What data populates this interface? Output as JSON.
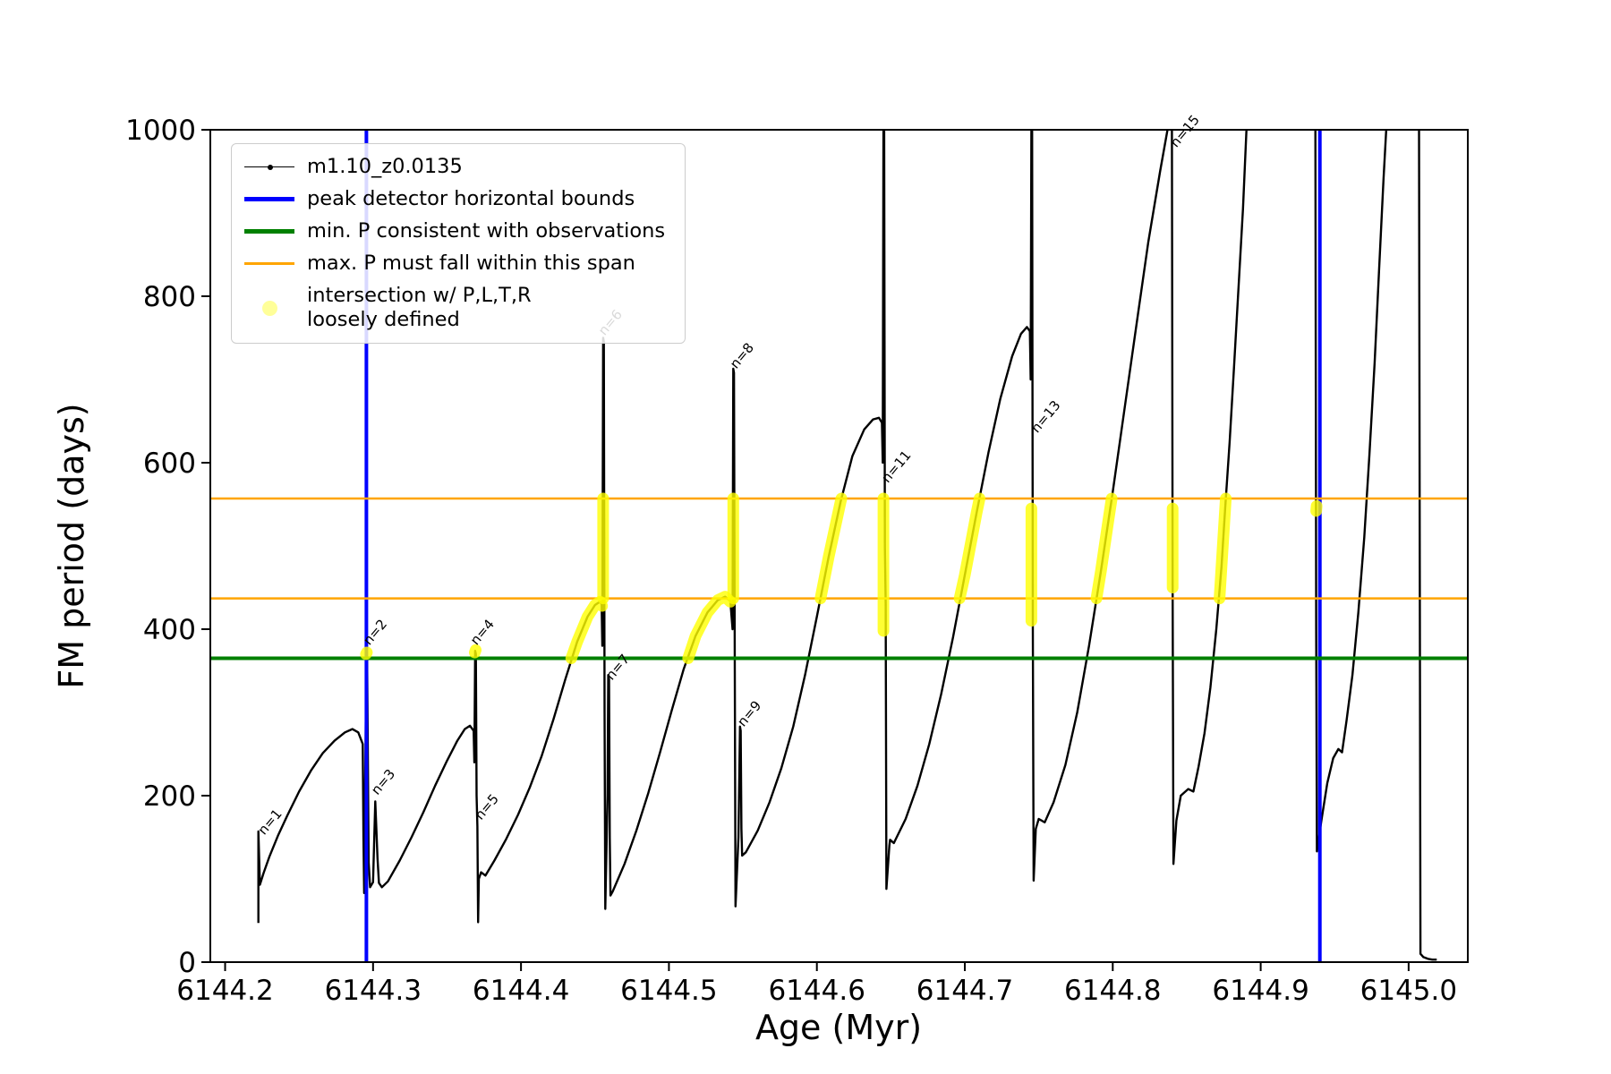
{
  "chart_data": {
    "type": "line",
    "title": "",
    "xlabel": "Age (Myr)",
    "ylabel": "FM period (days)",
    "xlim": [
      6144.19,
      6145.04
    ],
    "ylim": [
      0,
      1000
    ],
    "grid": false,
    "xticks": [
      6144.2,
      6144.3,
      6144.4,
      6144.5,
      6144.6,
      6144.7,
      6144.8,
      6144.9,
      6145.0
    ],
    "xtick_labels": [
      "6144.2",
      "6144.3",
      "6144.4",
      "6144.5",
      "6144.6",
      "6144.7",
      "6144.8",
      "6144.9",
      "6145.0"
    ],
    "yticks": [
      0,
      200,
      400,
      600,
      800,
      1000
    ],
    "ytick_labels": [
      "0",
      "200",
      "400",
      "600",
      "800",
      "1000"
    ],
    "colors": {
      "curve": "#000000",
      "peak_bounds": "#0000ff",
      "min_p": "#008000",
      "span": "#ffa500",
      "intersection": "#ffff00",
      "legend_dot": "#ffff99"
    },
    "legend_entries": [
      {
        "type": "line-dot",
        "color": "#000000",
        "lw": 1.5,
        "label": "m1.10_z0.0135"
      },
      {
        "type": "line",
        "color": "#0000ff",
        "lw": 5,
        "label": "peak detector horizontal bounds"
      },
      {
        "type": "line",
        "color": "#008000",
        "lw": 5,
        "label": "min. P consistent with observations"
      },
      {
        "type": "line",
        "color": "#ffa500",
        "lw": 2.5,
        "label": "max. P must fall within this span"
      },
      {
        "type": "dot",
        "color": "#ffff99",
        "lw": 0,
        "label": "intersection w/ P,L,T,R",
        "label2": "loosely defined"
      }
    ],
    "hlines": [
      {
        "y": 365,
        "color": "#008000",
        "width": 4,
        "name": "min-p-line"
      },
      {
        "y": 437,
        "color": "#ffa500",
        "width": 2.5,
        "name": "span-lower-line"
      },
      {
        "y": 557,
        "color": "#ffa500",
        "width": 2.5,
        "name": "span-upper-line"
      }
    ],
    "vlines": [
      {
        "x": 6144.2955,
        "color": "#0000ff",
        "width": 4,
        "name": "peak-bound-left"
      },
      {
        "x": 6144.94,
        "color": "#0000ff",
        "width": 4,
        "name": "peak-bound-right"
      }
    ],
    "series_name": "m1.10_z0.0135",
    "curve_segments": [
      [
        [
          6144.2225,
          47
        ],
        [
          6144.2225,
          157
        ],
        [
          6144.2235,
          93
        ],
        [
          6144.226,
          107
        ],
        [
          6144.23,
          127
        ],
        [
          6144.236,
          153
        ],
        [
          6144.242,
          176
        ],
        [
          6144.25,
          205
        ],
        [
          6144.258,
          230
        ],
        [
          6144.266,
          251
        ],
        [
          6144.274,
          266
        ],
        [
          6144.281,
          276
        ],
        [
          6144.286,
          280
        ],
        [
          6144.29,
          276
        ],
        [
          6144.293,
          262
        ],
        [
          6144.2935,
          150
        ],
        [
          6144.294,
          83
        ],
        [
          6144.2955,
          370
        ],
        [
          6144.296,
          365
        ],
        [
          6144.2965,
          250
        ],
        [
          6144.297,
          120
        ],
        [
          6144.298,
          90
        ],
        [
          6144.3,
          96
        ],
        [
          6144.3015,
          193
        ],
        [
          6144.303,
          125
        ],
        [
          6144.304,
          95
        ],
        [
          6144.306,
          90
        ],
        [
          6144.31,
          97
        ],
        [
          6144.318,
          122
        ],
        [
          6144.326,
          150
        ],
        [
          6144.334,
          180
        ],
        [
          6144.342,
          212
        ],
        [
          6144.35,
          242
        ],
        [
          6144.357,
          266
        ],
        [
          6144.362,
          280
        ],
        [
          6144.3655,
          284
        ],
        [
          6144.368,
          278
        ],
        [
          6144.3685,
          240
        ],
        [
          6144.369,
          374
        ],
        [
          6144.3695,
          370
        ],
        [
          6144.37,
          200
        ],
        [
          6144.3705,
          163
        ],
        [
          6144.371,
          48
        ],
        [
          6144.3715,
          100
        ],
        [
          6144.373,
          108
        ],
        [
          6144.376,
          104
        ],
        [
          6144.382,
          122
        ],
        [
          6144.39,
          148
        ],
        [
          6144.398,
          177
        ],
        [
          6144.406,
          210
        ],
        [
          6144.414,
          248
        ],
        [
          6144.422,
          292
        ],
        [
          6144.43,
          340
        ],
        [
          6144.438,
          385
        ],
        [
          6144.445,
          415
        ],
        [
          6144.45,
          429
        ],
        [
          6144.4535,
          433
        ],
        [
          6144.4545,
          430
        ],
        [
          6144.455,
          380
        ],
        [
          6144.4555,
          750
        ],
        [
          6144.456,
          745
        ],
        [
          6144.4565,
          300
        ],
        [
          6144.457,
          64
        ],
        [
          6144.4585,
          200
        ],
        [
          6144.459,
          345
        ],
        [
          6144.4595,
          340
        ],
        [
          6144.46,
          150
        ],
        [
          6144.4605,
          80
        ],
        [
          6144.462,
          85
        ],
        [
          6144.47,
          118
        ],
        [
          6144.478,
          158
        ],
        [
          6144.486,
          203
        ],
        [
          6144.494,
          252
        ],
        [
          6144.502,
          303
        ],
        [
          6144.51,
          352
        ],
        [
          6144.518,
          392
        ],
        [
          6144.526,
          420
        ],
        [
          6144.533,
          435
        ],
        [
          6144.538,
          439
        ],
        [
          6144.5415,
          434
        ],
        [
          6144.543,
          400
        ],
        [
          6144.5435,
          713
        ],
        [
          6144.544,
          708
        ],
        [
          6144.5445,
          350
        ],
        [
          6144.545,
          67
        ],
        [
          6144.547,
          150
        ],
        [
          6144.548,
          283
        ],
        [
          6144.5485,
          278
        ],
        [
          6144.549,
          160
        ],
        [
          6144.5495,
          128
        ],
        [
          6144.552,
          132
        ],
        [
          6144.56,
          158
        ],
        [
          6144.568,
          192
        ],
        [
          6144.576,
          233
        ],
        [
          6144.584,
          283
        ],
        [
          6144.592,
          345
        ],
        [
          6144.6,
          415
        ],
        [
          6144.608,
          487
        ],
        [
          6144.616,
          553
        ],
        [
          6144.624,
          608
        ],
        [
          6144.632,
          640
        ],
        [
          6144.638,
          652
        ],
        [
          6144.642,
          654
        ],
        [
          6144.644,
          648
        ],
        [
          6144.6445,
          600
        ],
        [
          6144.645,
          1005
        ],
        [
          6144.6455,
          1005
        ],
        [
          6144.646,
          500
        ],
        [
          6144.6465,
          430
        ],
        [
          6144.647,
          88
        ],
        [
          6144.649,
          140
        ],
        [
          6144.6495,
          147
        ],
        [
          6144.652,
          143
        ],
        [
          6144.66,
          172
        ],
        [
          6144.668,
          212
        ],
        [
          6144.676,
          262
        ],
        [
          6144.684,
          322
        ],
        [
          6144.692,
          390
        ],
        [
          6144.7,
          465
        ],
        [
          6144.708,
          540
        ],
        [
          6144.716,
          612
        ],
        [
          6144.724,
          677
        ],
        [
          6144.732,
          728
        ],
        [
          6144.738,
          755
        ],
        [
          6144.742,
          763
        ],
        [
          6144.744,
          758
        ],
        [
          6144.7445,
          700
        ],
        [
          6144.745,
          1005
        ],
        [
          6144.7455,
          1005
        ],
        [
          6144.746,
          400
        ],
        [
          6144.7465,
          98
        ],
        [
          6144.748,
          160
        ],
        [
          6144.75,
          172
        ],
        [
          6144.754,
          168
        ],
        [
          6144.76,
          192
        ],
        [
          6144.768,
          237
        ],
        [
          6144.776,
          300
        ],
        [
          6144.784,
          380
        ],
        [
          6144.792,
          470
        ],
        [
          6144.8,
          565
        ],
        [
          6144.808,
          665
        ],
        [
          6144.816,
          765
        ],
        [
          6144.824,
          865
        ],
        [
          6144.832,
          950
        ],
        [
          6144.8375,
          1005
        ],
        [
          6144.84,
          1005
        ],
        [
          6144.8405,
          450
        ],
        [
          6144.841,
          118
        ],
        [
          6144.843,
          170
        ],
        [
          6144.846,
          200
        ],
        [
          6144.851,
          208
        ],
        [
          6144.8545,
          205
        ],
        [
          6144.858,
          235
        ],
        [
          6144.862,
          275
        ],
        [
          6144.866,
          330
        ],
        [
          6144.87,
          400
        ],
        [
          6144.8735,
          475
        ],
        [
          6144.876,
          545
        ],
        [
          6144.879,
          625
        ],
        [
          6144.882,
          715
        ],
        [
          6144.885,
          810
        ],
        [
          6144.888,
          905
        ],
        [
          6144.8905,
          1005
        ],
        [
          6144.937,
          1005
        ],
        [
          6144.9375,
          400
        ],
        [
          6144.938,
          133
        ],
        [
          6144.941,
          170
        ],
        [
          6144.945,
          215
        ],
        [
          6144.949,
          245
        ],
        [
          6144.9525,
          256
        ],
        [
          6144.955,
          252
        ],
        [
          6144.958,
          290
        ],
        [
          6144.962,
          345
        ],
        [
          6144.966,
          420
        ],
        [
          6144.97,
          510
        ],
        [
          6144.9735,
          610
        ],
        [
          6144.977,
          720
        ],
        [
          6144.98,
          830
        ],
        [
          6144.983,
          940
        ],
        [
          6144.985,
          1005
        ],
        [
          6145.007,
          1005
        ],
        [
          6145.0075,
          500
        ],
        [
          6145.008,
          10
        ],
        [
          6145.01,
          6
        ],
        [
          6145.013,
          4
        ],
        [
          6145.016,
          3
        ],
        [
          6145.019,
          3
        ]
      ]
    ],
    "highlight_segments": [
      [
        [
          6144.2952,
          370
        ],
        [
          6144.2958,
          372
        ]
      ],
      [
        [
          6144.3688,
          372
        ],
        [
          6144.3694,
          375
        ]
      ],
      [
        [
          6144.434,
          365
        ],
        [
          6144.438,
          385
        ],
        [
          6144.445,
          415
        ],
        [
          6144.45,
          429
        ],
        [
          6144.4535,
          433
        ],
        [
          6144.4548,
          428
        ]
      ],
      [
        [
          6144.4555,
          437
        ],
        [
          6144.4555,
          557
        ]
      ],
      [
        [
          6144.513,
          365
        ],
        [
          6144.518,
          392
        ],
        [
          6144.526,
          420
        ],
        [
          6144.533,
          435
        ],
        [
          6144.538,
          439
        ],
        [
          6144.5415,
          433
        ]
      ],
      [
        [
          6144.5435,
          437
        ],
        [
          6144.5435,
          557
        ]
      ],
      [
        [
          6144.6025,
          437
        ],
        [
          6144.608,
          487
        ],
        [
          6144.616,
          553
        ],
        [
          6144.6166,
          557
        ]
      ],
      [
        [
          6144.645,
          398
        ],
        [
          6144.645,
          557
        ]
      ],
      [
        [
          6144.6965,
          437
        ],
        [
          6144.7,
          465
        ],
        [
          6144.708,
          540
        ],
        [
          6144.71,
          557
        ]
      ],
      [
        [
          6144.745,
          410
        ],
        [
          6144.745,
          545
        ]
      ],
      [
        [
          6144.789,
          437
        ],
        [
          6144.792,
          470
        ],
        [
          6144.797,
          530
        ],
        [
          6144.7993,
          557
        ]
      ],
      [
        [
          6144.8405,
          450
        ],
        [
          6144.8405,
          545
        ]
      ],
      [
        [
          6144.8722,
          437
        ],
        [
          6144.8735,
          475
        ],
        [
          6144.876,
          545
        ],
        [
          6144.8764,
          557
        ]
      ],
      [
        [
          6144.9375,
          542
        ],
        [
          6144.9378,
          548
        ]
      ]
    ],
    "annotations": [
      {
        "x": 6144.2265,
        "y": 152,
        "text": "n=1"
      },
      {
        "x": 6144.2975,
        "y": 380,
        "text": "n=2"
      },
      {
        "x": 6144.303,
        "y": 200,
        "text": "n=3"
      },
      {
        "x": 6144.37,
        "y": 380,
        "text": "n=4"
      },
      {
        "x": 6144.373,
        "y": 170,
        "text": "n=5"
      },
      {
        "x": 6144.4565,
        "y": 752,
        "text": "n=6"
      },
      {
        "x": 6144.4615,
        "y": 338,
        "text": "n=7"
      },
      {
        "x": 6144.5455,
        "y": 712,
        "text": "n=8"
      },
      {
        "x": 6144.5505,
        "y": 282,
        "text": "n=9"
      },
      {
        "x": 6144.648,
        "y": 575,
        "text": "n=11"
      },
      {
        "x": 6144.749,
        "y": 635,
        "text": "n=13"
      },
      {
        "x": 6144.843,
        "y": 978,
        "text": "n=15"
      }
    ]
  }
}
